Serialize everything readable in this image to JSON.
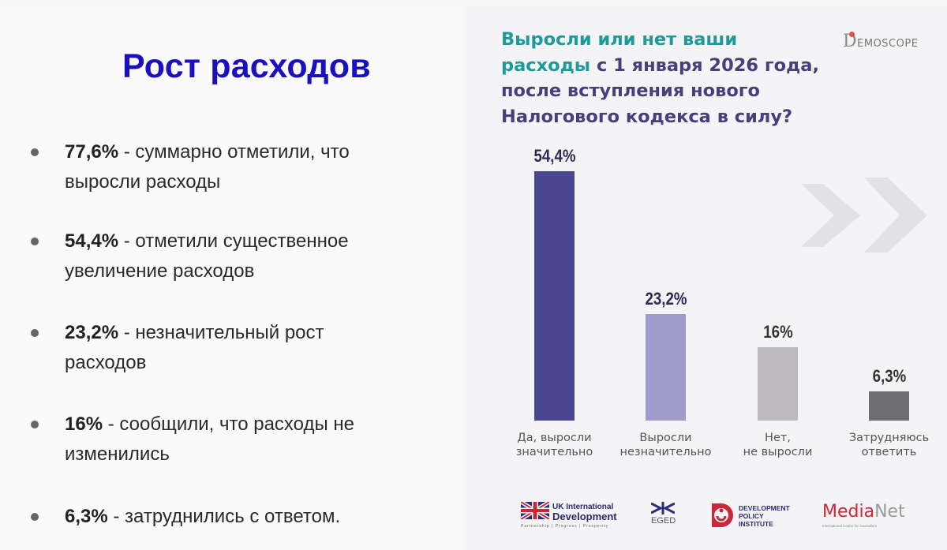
{
  "left": {
    "title": "Рост расходов",
    "bullets": [
      {
        "value": "77,6%",
        "text_line1": " - суммарно отметили, что",
        "text_line2": "выросли расходы"
      },
      {
        "value": "54,4%",
        "text_line1": " - отметили существенное",
        "text_line2": "увеличение расходов"
      },
      {
        "value": "23,2%",
        "text_line1": " - незначительный рост",
        "text_line2": "расходов"
      },
      {
        "value": "16%",
        "text_line1": " - сообщили, что расходы не",
        "text_line2": "изменились"
      },
      {
        "value": "6,3%",
        "text_line1": " - затруднились с ответом.",
        "text_line2": ""
      }
    ]
  },
  "right": {
    "question": {
      "line1": "Выросли или нет ваши",
      "line2_hl": "расходы",
      "line2_rest": " с 1 января 2026 года,",
      "line3": "после вступления нового",
      "line4": "Налогового кодекса в силу?"
    },
    "brand_logo": {
      "d": "D",
      "text": "EMOSCOPE"
    },
    "colors": {
      "title_teal": "#1f9a9c",
      "title_purple": "#45407a",
      "bar1": "#4b4690",
      "bar2": "#9f9bcb",
      "bar3": "#bdbbbf",
      "bar4": "#6e6d72"
    },
    "footer_logos": {
      "uk": {
        "line1": "UK International",
        "line2": "Development",
        "tagline": "Partnership | Progress | Prosperity"
      },
      "eged": {
        "name": "EGED"
      },
      "dpi": {
        "line1": "DEVELOPMENT",
        "line2": "POLICY",
        "line3": "INSTITUTE"
      },
      "medianet": {
        "media": "Media",
        "net": "Net",
        "sub": "International Centre for Journalism"
      }
    }
  },
  "chart_data": {
    "type": "bar",
    "title": "Выросли или нет ваши расходы с 1 января 2026 года, после вступления нового Налогового кодекса в силу?",
    "categories": [
      "Да, выросли значительно",
      "Выросли незначительно",
      "Нет, не выросли",
      "Затрудняюсь ответить"
    ],
    "category_lines": [
      [
        "Да, выросли",
        "значительно"
      ],
      [
        "Выросли",
        "незначительно"
      ],
      [
        "Нет,",
        "не выросли"
      ],
      [
        "Затрудняюсь",
        "ответить"
      ]
    ],
    "values": [
      54.4,
      23.2,
      16,
      6.3
    ],
    "value_labels": [
      "54,4%",
      "23,2%",
      "16%",
      "6,3%"
    ],
    "xlabel": "",
    "ylabel": "",
    "ylim": [
      0,
      60
    ],
    "grid": false,
    "legend": "none"
  }
}
